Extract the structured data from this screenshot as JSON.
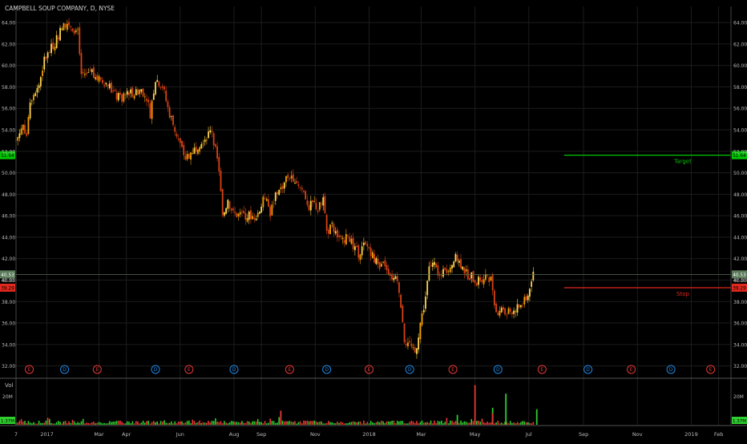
{
  "header": {
    "title": "CAMPBELL SOUP COMPANY, D, NYSE"
  },
  "colors": {
    "background": "#000000",
    "grid": "#1c1c1c",
    "axis_text": "#bbbbbb",
    "candle_up": "#f0a000",
    "candle_down": "#d84315",
    "candle_up_alt": "#ffd54f",
    "target": "#00c800",
    "stop": "#e0281e",
    "price_line": "#556b55",
    "earnings_marker": "#e53935",
    "dividend_marker": "#1e88e5",
    "vol_up": "#2ecc2e",
    "vol_down": "#e53935"
  },
  "chart_data": {
    "type": "candlestick",
    "title": "CAMPBELL SOUP COMPANY, D, NYSE",
    "ylim": [
      31.0,
      65.5
    ],
    "y_ticks": [
      "64.00",
      "62.00",
      "60.00",
      "58.00",
      "56.00",
      "54.00",
      "52.00",
      "50.00",
      "48.00",
      "46.00",
      "44.00",
      "42.00",
      "40.00",
      "38.00",
      "36.00",
      "34.00",
      "32.00"
    ],
    "x_ticks": [
      {
        "label": "7",
        "day": 0
      },
      {
        "label": "2017",
        "day": 35
      },
      {
        "label": "Mar",
        "day": 94
      },
      {
        "label": "Apr",
        "day": 125
      },
      {
        "label": "Jun",
        "day": 186
      },
      {
        "label": "Aug",
        "day": 247
      },
      {
        "label": "Sep",
        "day": 278
      },
      {
        "label": "Nov",
        "day": 339
      },
      {
        "label": "2018",
        "day": 400
      },
      {
        "label": "Mar",
        "day": 459
      },
      {
        "label": "May",
        "day": 520
      },
      {
        "label": "Jul",
        "day": 581
      },
      {
        "label": "Sep",
        "day": 643
      },
      {
        "label": "Nov",
        "day": 704
      },
      {
        "label": "2019",
        "day": 765
      },
      {
        "label": "Feb",
        "day": 796
      }
    ],
    "x_domain_days": [
      0,
      810
    ],
    "price_path": [
      [
        0,
        53.0
      ],
      [
        8,
        54.5
      ],
      [
        12,
        53.5
      ],
      [
        15,
        56.5
      ],
      [
        20,
        57.5
      ],
      [
        26,
        58.2
      ],
      [
        32,
        60.5
      ],
      [
        38,
        61.3
      ],
      [
        45,
        62.3
      ],
      [
        50,
        63.2
      ],
      [
        57,
        64.0
      ],
      [
        62,
        63.8
      ],
      [
        70,
        63.0
      ],
      [
        74,
        59.2
      ],
      [
        80,
        59.3
      ],
      [
        85,
        59.6
      ],
      [
        92,
        58.8
      ],
      [
        100,
        58.5
      ],
      [
        106,
        58.0
      ],
      [
        112,
        57.2
      ],
      [
        120,
        56.8
      ],
      [
        128,
        57.6
      ],
      [
        134,
        57.4
      ],
      [
        142,
        57.8
      ],
      [
        148,
        57.0
      ],
      [
        152,
        55.5
      ],
      [
        158,
        58.8
      ],
      [
        166,
        58.1
      ],
      [
        172,
        56.0
      ],
      [
        180,
        54.0
      ],
      [
        186,
        52.6
      ],
      [
        192,
        51.3
      ],
      [
        197,
        51.8
      ],
      [
        203,
        52.3
      ],
      [
        210,
        53.0
      ],
      [
        216,
        53.4
      ],
      [
        222,
        54.0
      ],
      [
        226,
        52.0
      ],
      [
        230,
        50.3
      ],
      [
        234,
        45.8
      ],
      [
        240,
        47.5
      ],
      [
        246,
        46.2
      ],
      [
        254,
        46.0
      ],
      [
        262,
        46.0
      ],
      [
        270,
        46.0
      ],
      [
        276,
        46.5
      ],
      [
        282,
        47.8
      ],
      [
        288,
        46.2
      ],
      [
        294,
        48.0
      ],
      [
        300,
        48.5
      ],
      [
        306,
        49.5
      ],
      [
        312,
        49.8
      ],
      [
        318,
        49.2
      ],
      [
        326,
        48.2
      ],
      [
        332,
        46.8
      ],
      [
        338,
        47.2
      ],
      [
        342,
        46.5
      ],
      [
        348,
        47.7
      ],
      [
        352,
        44.5
      ],
      [
        358,
        45.0
      ],
      [
        364,
        44.2
      ],
      [
        370,
        43.5
      ],
      [
        376,
        44.5
      ],
      [
        382,
        43.0
      ],
      [
        388,
        42.5
      ],
      [
        394,
        43.2
      ],
      [
        400,
        43.0
      ],
      [
        406,
        42.0
      ],
      [
        412,
        41.0
      ],
      [
        418,
        41.5
      ],
      [
        424,
        40.5
      ],
      [
        430,
        40.0
      ],
      [
        434,
        39.2
      ],
      [
        440,
        34.5
      ],
      [
        446,
        34.0
      ],
      [
        452,
        33.0
      ],
      [
        458,
        36.0
      ],
      [
        462,
        37.5
      ],
      [
        464,
        38.5
      ],
      [
        468,
        41.0
      ],
      [
        474,
        41.5
      ],
      [
        480,
        40.2
      ],
      [
        486,
        40.8
      ],
      [
        492,
        41.5
      ],
      [
        498,
        42.0
      ],
      [
        504,
        41.5
      ],
      [
        510,
        40.6
      ],
      [
        516,
        40.3
      ],
      [
        522,
        39.8
      ],
      [
        528,
        40.2
      ],
      [
        534,
        40.5
      ],
      [
        538,
        40.0
      ],
      [
        540,
        39.2
      ],
      [
        544,
        37.0
      ],
      [
        550,
        37.5
      ],
      [
        556,
        36.8
      ],
      [
        562,
        37.2
      ],
      [
        568,
        37.5
      ],
      [
        574,
        37.7
      ],
      [
        580,
        38.6
      ],
      [
        584,
        39.8
      ],
      [
        586,
        40.6
      ]
    ],
    "target": {
      "label": "Target",
      "value": 51.64,
      "value_label": "51.64",
      "from_day": 621
    },
    "stop": {
      "label": "Stop",
      "value": 39.29,
      "value_label": "39.29",
      "from_day": 621
    },
    "last_price": {
      "value": 40.53,
      "value_label": "40.53"
    },
    "prev_label": {
      "value": 40.0,
      "value_label": "40.00"
    },
    "events": [
      {
        "type": "E",
        "day": 15
      },
      {
        "type": "D",
        "day": 55
      },
      {
        "type": "E",
        "day": 92
      },
      {
        "type": "D",
        "day": 158
      },
      {
        "type": "E",
        "day": 196
      },
      {
        "type": "D",
        "day": 247
      },
      {
        "type": "E",
        "day": 310
      },
      {
        "type": "D",
        "day": 352
      },
      {
        "type": "E",
        "day": 400
      },
      {
        "type": "D",
        "day": 446
      },
      {
        "type": "E",
        "day": 495
      },
      {
        "type": "D",
        "day": 546
      },
      {
        "type": "E",
        "day": 596
      },
      {
        "type": "D",
        "day": 648
      },
      {
        "type": "E",
        "day": 697
      },
      {
        "type": "D",
        "day": 742
      },
      {
        "type": "E",
        "day": 787
      },
      {
        "type": "E",
        "day": 885
      }
    ],
    "volume": {
      "label": "Vol",
      "y_tick": "20M",
      "current_label": "1.37M",
      "max": 30,
      "spikes": [
        {
          "day": 520,
          "value": 28,
          "up": false
        },
        {
          "day": 540,
          "value": 12,
          "up": true
        },
        {
          "day": 555,
          "value": 22,
          "up": true
        },
        {
          "day": 590,
          "value": 11,
          "up": true
        },
        {
          "day": 300,
          "value": 10,
          "up": false
        },
        {
          "day": 540,
          "value": 8,
          "up": false
        },
        {
          "day": 500,
          "value": 7,
          "up": true
        }
      ]
    }
  }
}
